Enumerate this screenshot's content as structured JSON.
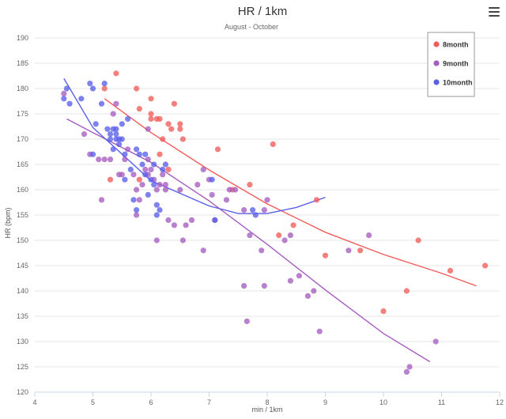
{
  "menu_icon": "hamburger-menu-icon",
  "chart_data": {
    "type": "scatter",
    "title": "HR / 1km",
    "subtitle": "August - October",
    "xlabel": "min / 1km",
    "ylabel": "HR (bpm)",
    "xlim": [
      4,
      12
    ],
    "ylim": [
      120,
      190
    ],
    "xticks": [
      4,
      5,
      6,
      7,
      8,
      9,
      10,
      11,
      12
    ],
    "yticks": [
      120,
      125,
      130,
      135,
      140,
      145,
      150,
      155,
      160,
      165,
      170,
      175,
      180,
      185,
      190
    ],
    "grid": "horizontal",
    "legend": "top-right",
    "series": [
      {
        "name": "8month",
        "color": "#f15c5a",
        "points": [
          [
            5.4,
            183
          ],
          [
            5.2,
            180
          ],
          [
            5.75,
            180
          ],
          [
            6.0,
            178
          ],
          [
            5.8,
            176
          ],
          [
            6.0,
            175
          ],
          [
            6.3,
            173
          ],
          [
            6.5,
            173
          ],
          [
            6.1,
            174
          ],
          [
            6.4,
            177
          ],
          [
            6.0,
            174
          ],
          [
            6.15,
            174
          ],
          [
            6.55,
            170
          ],
          [
            6.2,
            170
          ],
          [
            6.35,
            172
          ],
          [
            6.5,
            172
          ],
          [
            6.15,
            167
          ],
          [
            6.3,
            164
          ],
          [
            7.15,
            168
          ],
          [
            8.1,
            169
          ],
          [
            7.7,
            161
          ],
          [
            7.4,
            160
          ],
          [
            8.85,
            158
          ],
          [
            8.2,
            151
          ],
          [
            8.45,
            153
          ],
          [
            9.0,
            147
          ],
          [
            9.6,
            148
          ],
          [
            10.6,
            150
          ],
          [
            10.0,
            136
          ],
          [
            10.4,
            140
          ],
          [
            11.15,
            144
          ],
          [
            11.75,
            145
          ],
          [
            5.3,
            162
          ],
          [
            5.8,
            162
          ]
        ],
        "trend": [
          [
            5.2,
            178
          ],
          [
            6,
            171.3
          ],
          [
            7,
            163.9
          ],
          [
            8,
            157.2
          ],
          [
            9,
            151.6
          ],
          [
            10,
            147.2
          ],
          [
            11,
            143.5
          ],
          [
            11.6,
            141
          ]
        ]
      },
      {
        "name": "9month",
        "color": "#a55cbf",
        "points": [
          [
            4.5,
            179
          ],
          [
            4.85,
            171
          ],
          [
            4.95,
            167
          ],
          [
            5.1,
            166
          ],
          [
            5.2,
            166
          ],
          [
            5.3,
            166
          ],
          [
            5.35,
            175
          ],
          [
            5.4,
            177
          ],
          [
            5.45,
            163
          ],
          [
            5.5,
            163
          ],
          [
            5.55,
            166
          ],
          [
            5.7,
            163
          ],
          [
            5.75,
            160
          ],
          [
            5.8,
            158
          ],
          [
            5.85,
            161
          ],
          [
            5.9,
            164
          ],
          [
            5.95,
            163
          ],
          [
            6.0,
            164
          ],
          [
            6.05,
            162
          ],
          [
            6.1,
            160
          ],
          [
            6.15,
            161
          ],
          [
            6.2,
            163
          ],
          [
            6.25,
            160
          ],
          [
            6.3,
            154
          ],
          [
            6.4,
            153
          ],
          [
            6.5,
            160
          ],
          [
            6.6,
            153
          ],
          [
            6.7,
            154
          ],
          [
            6.8,
            161
          ],
          [
            6.9,
            164
          ],
          [
            7.0,
            162
          ],
          [
            7.05,
            159
          ],
          [
            7.1,
            154
          ],
          [
            7.3,
            158
          ],
          [
            7.45,
            160
          ],
          [
            7.6,
            156
          ],
          [
            7.7,
            151
          ],
          [
            7.9,
            148
          ],
          [
            7.95,
            156
          ],
          [
            8.0,
            158
          ],
          [
            8.3,
            150
          ],
          [
            8.4,
            142
          ],
          [
            8.55,
            143
          ],
          [
            8.7,
            139
          ],
          [
            8.9,
            132
          ],
          [
            9.4,
            148
          ],
          [
            9.75,
            151
          ],
          [
            10.4,
            124
          ],
          [
            10.45,
            125
          ],
          [
            10.9,
            130
          ],
          [
            5.75,
            155
          ],
          [
            6.1,
            150
          ],
          [
            6.55,
            150
          ],
          [
            6.9,
            148
          ],
          [
            7.6,
            141
          ],
          [
            7.65,
            134
          ],
          [
            7.95,
            141
          ],
          [
            8.8,
            140
          ],
          [
            5.15,
            158
          ],
          [
            5.95,
            166
          ],
          [
            6.25,
            161
          ],
          [
            7.35,
            160
          ],
          [
            8.4,
            151
          ],
          [
            5.6,
            168
          ],
          [
            5.95,
            172
          ]
        ],
        "trend": [
          [
            4.55,
            174
          ],
          [
            5,
            171.3
          ],
          [
            6,
            165.4
          ],
          [
            7,
            157.8
          ],
          [
            8,
            149.2
          ],
          [
            9,
            140.2
          ],
          [
            10,
            131.6
          ],
          [
            10.8,
            126
          ]
        ]
      },
      {
        "name": "10month",
        "color": "#5a5fe8",
        "points": [
          [
            4.5,
            178
          ],
          [
            4.55,
            180
          ],
          [
            4.6,
            177
          ],
          [
            4.8,
            178
          ],
          [
            4.95,
            181
          ],
          [
            5.0,
            180
          ],
          [
            5.05,
            173
          ],
          [
            5.15,
            177
          ],
          [
            5.2,
            181
          ],
          [
            5.25,
            172
          ],
          [
            5.3,
            171
          ],
          [
            5.35,
            172
          ],
          [
            5.4,
            170
          ],
          [
            5.45,
            169
          ],
          [
            5.5,
            173
          ],
          [
            5.55,
            167
          ],
          [
            5.6,
            174
          ],
          [
            5.65,
            164
          ],
          [
            5.7,
            158
          ],
          [
            5.75,
            168
          ],
          [
            5.8,
            167
          ],
          [
            5.85,
            165
          ],
          [
            5.9,
            163
          ],
          [
            5.95,
            159
          ],
          [
            6.0,
            162
          ],
          [
            6.05,
            161
          ],
          [
            6.1,
            157
          ],
          [
            6.15,
            156
          ],
          [
            6.2,
            164
          ],
          [
            6.25,
            165
          ],
          [
            5.4,
            172
          ],
          [
            5.5,
            170
          ],
          [
            5.45,
            170
          ],
          [
            5.35,
            168
          ],
          [
            5.55,
            162
          ],
          [
            5.75,
            156
          ],
          [
            5.9,
            167
          ],
          [
            6.05,
            165
          ],
          [
            6.1,
            155
          ],
          [
            7.05,
            162
          ],
          [
            7.1,
            154
          ],
          [
            7.75,
            156
          ],
          [
            7.8,
            155
          ],
          [
            5.0,
            167
          ],
          [
            5.4,
            171
          ],
          [
            5.3,
            170
          ]
        ],
        "trend": [
          [
            4.5,
            182
          ],
          [
            5,
            172.3
          ],
          [
            6,
            161.8
          ],
          [
            7,
            156.8
          ],
          [
            7.5,
            155.3
          ],
          [
            8,
            155.3
          ],
          [
            8.5,
            156.5
          ],
          [
            9,
            158.5
          ]
        ]
      }
    ]
  }
}
